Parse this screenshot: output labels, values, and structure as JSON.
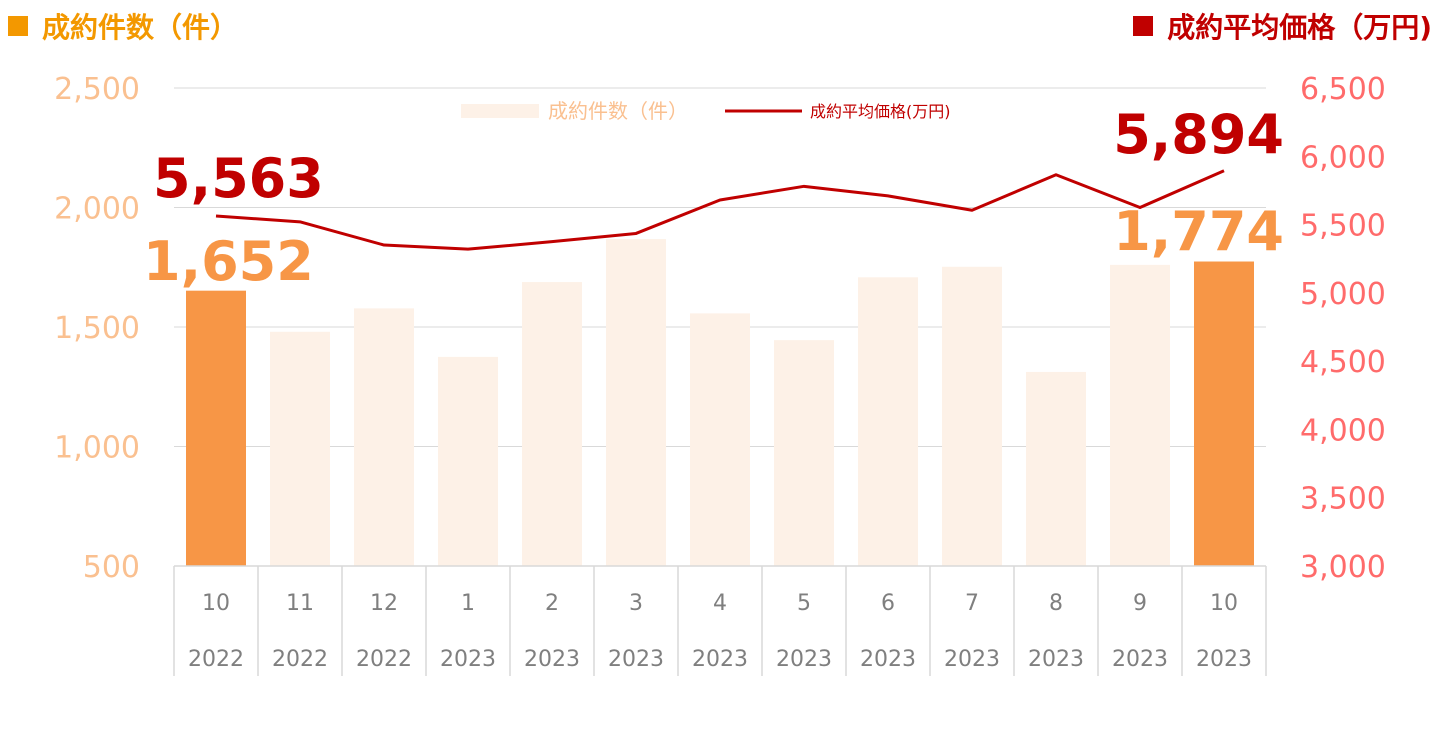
{
  "titles": {
    "left": "成約件数（件）",
    "right": "成約平均価格（万円)"
  },
  "legend": {
    "bar_label": "成約件数（件）",
    "line_label": "成約平均価格(万円)"
  },
  "colors": {
    "bar_highlight": "#f79646",
    "bar_light": "#fdf1e7",
    "line": "#c00000",
    "left_axis_text": "#fac090",
    "right_axis_text": "#ff6b6b",
    "title_left": "#f39800",
    "title_right": "#c00000",
    "grid": "#d9d9d9",
    "category_text": "#7f7f7f"
  },
  "chart_data": {
    "type": "bar",
    "categories": [
      {
        "month": "10",
        "year": "2022"
      },
      {
        "month": "11",
        "year": "2022"
      },
      {
        "month": "12",
        "year": "2022"
      },
      {
        "month": "1",
        "year": "2023"
      },
      {
        "month": "2",
        "year": "2023"
      },
      {
        "month": "3",
        "year": "2023"
      },
      {
        "month": "4",
        "year": "2023"
      },
      {
        "month": "5",
        "year": "2023"
      },
      {
        "month": "6",
        "year": "2023"
      },
      {
        "month": "7",
        "year": "2023"
      },
      {
        "month": "8",
        "year": "2023"
      },
      {
        "month": "9",
        "year": "2023"
      },
      {
        "month": "10",
        "year": "2023"
      }
    ],
    "series": [
      {
        "name": "成約件数（件）",
        "type": "bar",
        "axis": "left",
        "values": [
          1652,
          1480,
          1578,
          1375,
          1688,
          1868,
          1557,
          1445,
          1708,
          1752,
          1312,
          1760,
          1774
        ],
        "highlight_indices": [
          0,
          12
        ]
      },
      {
        "name": "成約平均価格(万円)",
        "type": "line",
        "axis": "right",
        "values": [
          5563,
          5520,
          5350,
          5320,
          5375,
          5435,
          5680,
          5780,
          5710,
          5605,
          5865,
          5625,
          5894
        ]
      }
    ],
    "left_axis": {
      "min": 500,
      "max": 2500,
      "ticks": [
        "500",
        "1,000",
        "1,500",
        "2,000",
        "2,500"
      ]
    },
    "right_axis": {
      "min": 3000,
      "max": 6500,
      "ticks": [
        "3,000",
        "3,500",
        "4,000",
        "4,500",
        "5,000",
        "5,500",
        "6,000",
        "6,500"
      ]
    },
    "annotations": {
      "first_bar": "1,652",
      "last_bar": "1,774",
      "first_line": "5,563",
      "last_line": "5,894"
    },
    "grid": true,
    "legend_position": "top-center"
  }
}
